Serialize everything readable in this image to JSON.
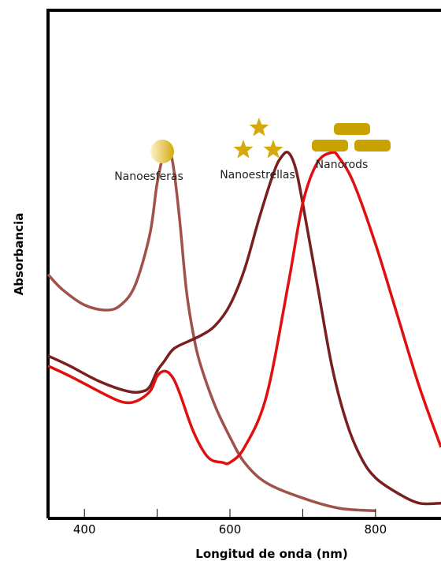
{
  "chart_data": {
    "type": "line",
    "xlabel": "Longitud de onda (nm)",
    "ylabel": "Absorbancia",
    "xlim": [
      350,
      890
    ],
    "ylim": [
      0,
      1.0
    ],
    "x_ticks": [
      400,
      500,
      600,
      700,
      800
    ],
    "x_tick_labels": [
      "400",
      "",
      "600",
      "",
      "800"
    ],
    "grid": false,
    "series": [
      {
        "name": "Nanoesferas",
        "color": "#a0524a",
        "icon": "sphere-icon",
        "x": [
          350,
          370,
          400,
          430,
          450,
          470,
          490,
          500,
          510,
          520,
          530,
          540,
          550,
          560,
          580,
          600,
          620,
          650,
          700,
          750,
          800
        ],
        "y": [
          0.48,
          0.45,
          0.42,
          0.41,
          0.42,
          0.46,
          0.56,
          0.66,
          0.72,
          0.71,
          0.6,
          0.45,
          0.36,
          0.3,
          0.22,
          0.16,
          0.11,
          0.07,
          0.04,
          0.02,
          0.015
        ]
      },
      {
        "name": "Nanoestrellas",
        "color": "#7a1f1f",
        "icon": "star-icon",
        "x": [
          350,
          380,
          420,
          460,
          480,
          490,
          500,
          510,
          520,
          530,
          560,
          580,
          600,
          620,
          640,
          660,
          670,
          680,
          690,
          700,
          720,
          740,
          760,
          780,
          800,
          830,
          860,
          890
        ],
        "y": [
          0.32,
          0.3,
          0.27,
          0.25,
          0.25,
          0.26,
          0.29,
          0.31,
          0.33,
          0.34,
          0.36,
          0.38,
          0.42,
          0.49,
          0.59,
          0.68,
          0.71,
          0.72,
          0.69,
          0.62,
          0.46,
          0.3,
          0.19,
          0.12,
          0.08,
          0.05,
          0.03,
          0.03
        ]
      },
      {
        "name": "Nanorods",
        "color": "#e01010",
        "icon": "rod-icon",
        "x": [
          350,
          380,
          420,
          450,
          470,
          490,
          500,
          510,
          520,
          530,
          550,
          570,
          590,
          600,
          620,
          650,
          680,
          700,
          720,
          740,
          750,
          770,
          800,
          830,
          860,
          890
        ],
        "y": [
          0.3,
          0.28,
          0.25,
          0.23,
          0.23,
          0.25,
          0.28,
          0.29,
          0.28,
          0.25,
          0.17,
          0.12,
          0.11,
          0.11,
          0.14,
          0.24,
          0.46,
          0.62,
          0.7,
          0.72,
          0.71,
          0.66,
          0.54,
          0.4,
          0.26,
          0.14
        ]
      }
    ]
  },
  "labels": {
    "nanoesferas": "Nanoesferas",
    "nanoestrellas": "Nanoestrellas",
    "nanorods": "Nanorods"
  },
  "colors": {
    "sphere_gold": "#d4a90c",
    "star_gold": "#d4a90c",
    "rod_gold": "#c9a200",
    "axis": "#000000"
  }
}
